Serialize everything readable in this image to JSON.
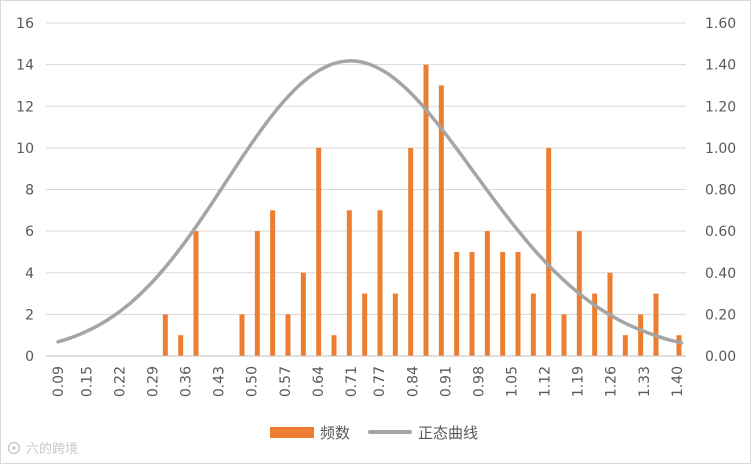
{
  "colors": {
    "bar": "#ED7D31",
    "curve": "#A5A5A5",
    "grid": "#D9D9D9",
    "axis": "#BFBFBF",
    "text": "#595959"
  },
  "watermark": {
    "text": "六的跨境",
    "icon": "brand-logo-icon"
  },
  "chart_data": {
    "type": "bar",
    "x": [
      0.09,
      0.1062,
      0.1225,
      0.1387,
      0.1549,
      0.1711,
      0.1874,
      0.2036,
      0.2198,
      0.2361,
      0.2523,
      0.2685,
      0.2847,
      0.301,
      0.3172,
      0.3334,
      0.3497,
      0.3659,
      0.3821,
      0.3983,
      0.4146,
      0.4308,
      0.447,
      0.4633,
      0.4795,
      0.4957,
      0.5119,
      0.5282,
      0.5444,
      0.5606,
      0.5769,
      0.5931,
      0.6093,
      0.6255,
      0.6418,
      0.658,
      0.6742,
      0.6905,
      0.7067,
      0.7229,
      0.7391,
      0.7554,
      0.7716,
      0.7878,
      0.8041,
      0.8203,
      0.8365,
      0.8527,
      0.869,
      0.8852,
      0.9014,
      0.9177,
      0.9339,
      0.9501,
      0.9663,
      0.9826,
      0.9988,
      1.015,
      1.0313,
      1.0475,
      1.0637,
      1.0799,
      1.0962,
      1.1124,
      1.1286,
      1.1449,
      1.1611,
      1.1773,
      1.1935,
      1.2098,
      1.226,
      1.2422,
      1.2585,
      1.2747,
      1.2909,
      1.3071,
      1.3234,
      1.3396,
      1.3558,
      1.3721,
      1.3883,
      1.4045
    ],
    "x_tick_labels": [
      "0.09",
      "0.15",
      "0.22",
      "0.29",
      "0.36",
      "0.43",
      "0.50",
      "0.57",
      "0.64",
      "0.71",
      "0.77",
      "0.84",
      "0.91",
      "0.98",
      "1.05",
      "1.12",
      "1.19",
      "1.26",
      "1.33",
      "1.40"
    ],
    "series": [
      {
        "name": "频数",
        "type": "bar",
        "axis": "left",
        "values": [
          0,
          0,
          0,
          0,
          0,
          0,
          0,
          0,
          0,
          0,
          0,
          0,
          0,
          0,
          2,
          0,
          1,
          0,
          6,
          0,
          0,
          0,
          0,
          0,
          2,
          0,
          6,
          0,
          7,
          0,
          2,
          0,
          4,
          0,
          10,
          0,
          1,
          0,
          7,
          0,
          3,
          0,
          7,
          0,
          3,
          0,
          10,
          0,
          14,
          0,
          13,
          0,
          5,
          0,
          5,
          0,
          6,
          0,
          5,
          0,
          5,
          0,
          3,
          0,
          10,
          0,
          2,
          0,
          6,
          0,
          3,
          0,
          4,
          0,
          1,
          0,
          2,
          0,
          3,
          0,
          0,
          1
        ]
      },
      {
        "name": "正态曲线",
        "type": "line",
        "axis": "right",
        "x": [
          0.09,
          0.12,
          0.15,
          0.18,
          0.21,
          0.24,
          0.27,
          0.3,
          0.33,
          0.36,
          0.39,
          0.42,
          0.45,
          0.48,
          0.51,
          0.54,
          0.57,
          0.6,
          0.63,
          0.66,
          0.69,
          0.72,
          0.75,
          0.78,
          0.81,
          0.84,
          0.87,
          0.9,
          0.93,
          0.96,
          0.99,
          1.02,
          1.05,
          1.08,
          1.11,
          1.14,
          1.17,
          1.2,
          1.23,
          1.26,
          1.29,
          1.32,
          1.35,
          1.38,
          1.41
        ],
        "values": [
          0.068,
          0.09,
          0.118,
          0.153,
          0.196,
          0.248,
          0.31,
          0.381,
          0.462,
          0.551,
          0.647,
          0.748,
          0.852,
          0.955,
          1.054,
          1.147,
          1.229,
          1.299,
          1.354,
          1.393,
          1.414,
          1.417,
          1.401,
          1.368,
          1.319,
          1.256,
          1.181,
          1.097,
          1.008,
          0.915,
          0.822,
          0.73,
          0.642,
          0.558,
          0.48,
          0.409,
          0.345,
          0.288,
          0.238,
          0.195,
          0.158,
          0.128,
          0.102,
          0.08,
          0.063
        ]
      }
    ],
    "y_left": {
      "ticks": [
        "0",
        "2",
        "4",
        "6",
        "8",
        "10",
        "12",
        "14",
        "16"
      ],
      "min": 0,
      "max": 16
    },
    "y_right": {
      "ticks": [
        "0.00",
        "0.20",
        "0.40",
        "0.60",
        "0.80",
        "1.00",
        "1.20",
        "1.40",
        "1.60"
      ],
      "min": 0,
      "max": 1.6
    },
    "grid": true,
    "legend_position": "bottom"
  }
}
